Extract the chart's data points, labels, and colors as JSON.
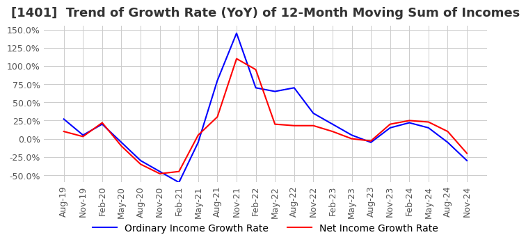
{
  "title": "[1401]  Trend of Growth Rate (YoY) of 12-Month Moving Sum of Incomes",
  "xlabel": "",
  "ylabel": "",
  "ylim": [
    -60,
    155
  ],
  "yticks": [
    -50,
    -25,
    0,
    25,
    50,
    75,
    100,
    125,
    150
  ],
  "legend_labels": [
    "Ordinary Income Growth Rate",
    "Net Income Growth Rate"
  ],
  "line_colors": [
    "#0000ff",
    "#ff0000"
  ],
  "dates": [
    "Aug-19",
    "Nov-19",
    "Feb-20",
    "May-20",
    "Aug-20",
    "Nov-20",
    "Feb-21",
    "May-21",
    "Aug-21",
    "Nov-21",
    "Feb-22",
    "May-22",
    "Aug-22",
    "Nov-22",
    "Feb-23",
    "May-23",
    "Aug-23",
    "Nov-23",
    "Feb-24",
    "May-24",
    "Aug-24",
    "Nov-24"
  ],
  "ordinary_income": [
    27,
    5,
    20,
    -5,
    -30,
    -45,
    -60,
    -5,
    80,
    145,
    70,
    65,
    70,
    35,
    20,
    5,
    -5,
    15,
    22,
    15,
    -5,
    -30
  ],
  "net_income": [
    10,
    3,
    22,
    -10,
    -35,
    -48,
    -45,
    5,
    30,
    110,
    95,
    20,
    18,
    18,
    10,
    0,
    -3,
    20,
    25,
    23,
    10,
    -20
  ],
  "background_color": "#ffffff",
  "grid_color": "#cccccc",
  "title_fontsize": 13,
  "tick_fontsize": 9,
  "legend_fontsize": 10
}
